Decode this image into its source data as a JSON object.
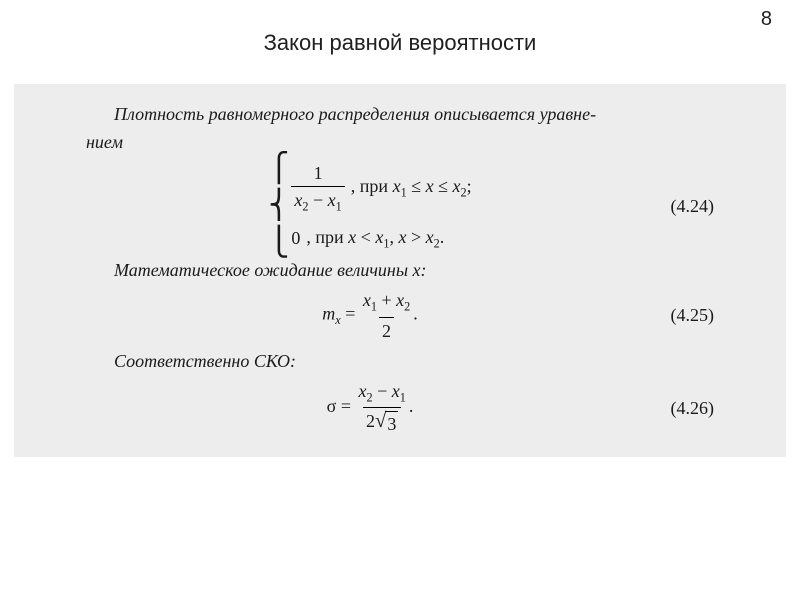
{
  "page": {
    "number": "8",
    "title": "Закон равной вероятности",
    "bg_color": "#ffffff",
    "scan_bg": "#ededed",
    "text_color": "#1a1a1a",
    "title_color": "#202020",
    "font_body": "Times New Roman",
    "font_title": "Arial",
    "title_fontsize_pt": 17,
    "body_fontsize_pt": 14
  },
  "text": {
    "intro_line1": "Плотность равномерного распределения описывается уравне-",
    "intro_line2": "нием",
    "expectation_label": "Математическое ожидание величины ",
    "expectation_var": "x",
    "expectation_colon": ":",
    "sko_label": "Соответственно СКО:"
  },
  "eq": {
    "density": {
      "number": "(4.24)",
      "case1_frac_num": "1",
      "case1_frac_den_left": "x",
      "case1_frac_den_left_sub": "2",
      "case1_frac_den_mid": " − ",
      "case1_frac_den_right": "x",
      "case1_frac_den_right_sub": "1",
      "case1_cond_prefix": ", при  ",
      "case1_cond_x1": "x",
      "case1_cond_x1_sub": "1",
      "case1_cond_le1": " ≤ ",
      "case1_cond_xmid": "x",
      "case1_cond_le2": " ≤ ",
      "case1_cond_x2": "x",
      "case1_cond_x2_sub": "2",
      "case1_cond_semi": ";",
      "case2_zero": "0",
      "case2_cond_prefix": ", при  ",
      "case2_cond_a": "x",
      "case2_cond_lt": " < ",
      "case2_cond_b": "x",
      "case2_cond_b_sub": "1",
      "case2_cond_comma": ",  ",
      "case2_cond_c": "x",
      "case2_cond_gt": " > ",
      "case2_cond_d": "x",
      "case2_cond_d_sub": "2",
      "case2_cond_dot": "."
    },
    "mean": {
      "number": "(4.25)",
      "lhs_m": "m",
      "lhs_sub": "x",
      "eq": " = ",
      "num_a": "x",
      "num_a_sub": "1",
      "num_plus": " + ",
      "num_b": "x",
      "num_b_sub": "2",
      "den": "2",
      "dot": "."
    },
    "sigma": {
      "number": "(4.26)",
      "lhs": "σ",
      "eq": " = ",
      "num_a": "x",
      "num_a_sub": "2",
      "num_minus": " − ",
      "num_b": "x",
      "num_b_sub": "1",
      "den_two": "2",
      "den_rad": "3",
      "dot": "."
    }
  }
}
